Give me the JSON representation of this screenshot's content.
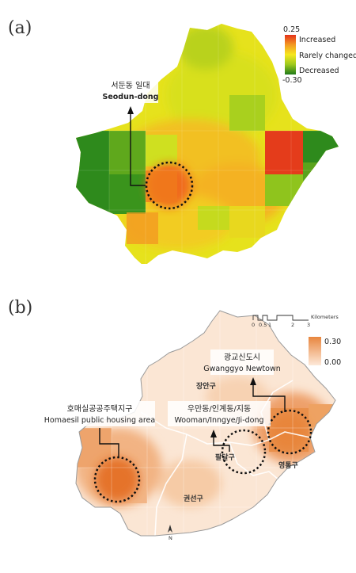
{
  "panel_a": {
    "label": "(a)",
    "legend": {
      "max_value": "0.25",
      "min_value": "-0.30",
      "high_label": "Increased",
      "mid_label": "Rarely changed",
      "low_label": "Decreased"
    },
    "callout": {
      "korean": "서둔동 일대",
      "english": "Seodun-dong"
    }
  },
  "panel_b": {
    "label": "(b)",
    "legend": {
      "max_value": "0.30",
      "min_value": "0.00"
    },
    "scale_bar": {
      "ticks": [
        "0",
        "0.5",
        "1",
        "2",
        "3"
      ],
      "unit": "Kilometers"
    },
    "callouts": {
      "gwanggyo": {
        "korean": "광교신도시",
        "english": "Gwanggyo Newtown"
      },
      "homaesil": {
        "korean": "호매실공공주택지구",
        "english": "Homaesil public housing area"
      },
      "wooman": {
        "korean": "우만동/인계동/지동",
        "english": "Wooman/Inngye/Ji-dong"
      }
    },
    "districts": {
      "jangan": "장안구",
      "paldal": "팔달구",
      "yeongtong": "영통구",
      "gwonseon": "권선구"
    },
    "north_label": "N"
  },
  "colors": {
    "increased": "#e63a1c",
    "neutral": "#f7e21e",
    "decreased": "#1f7a1a",
    "density_high": "#e8863e",
    "density_low": "#fbe7d6"
  }
}
